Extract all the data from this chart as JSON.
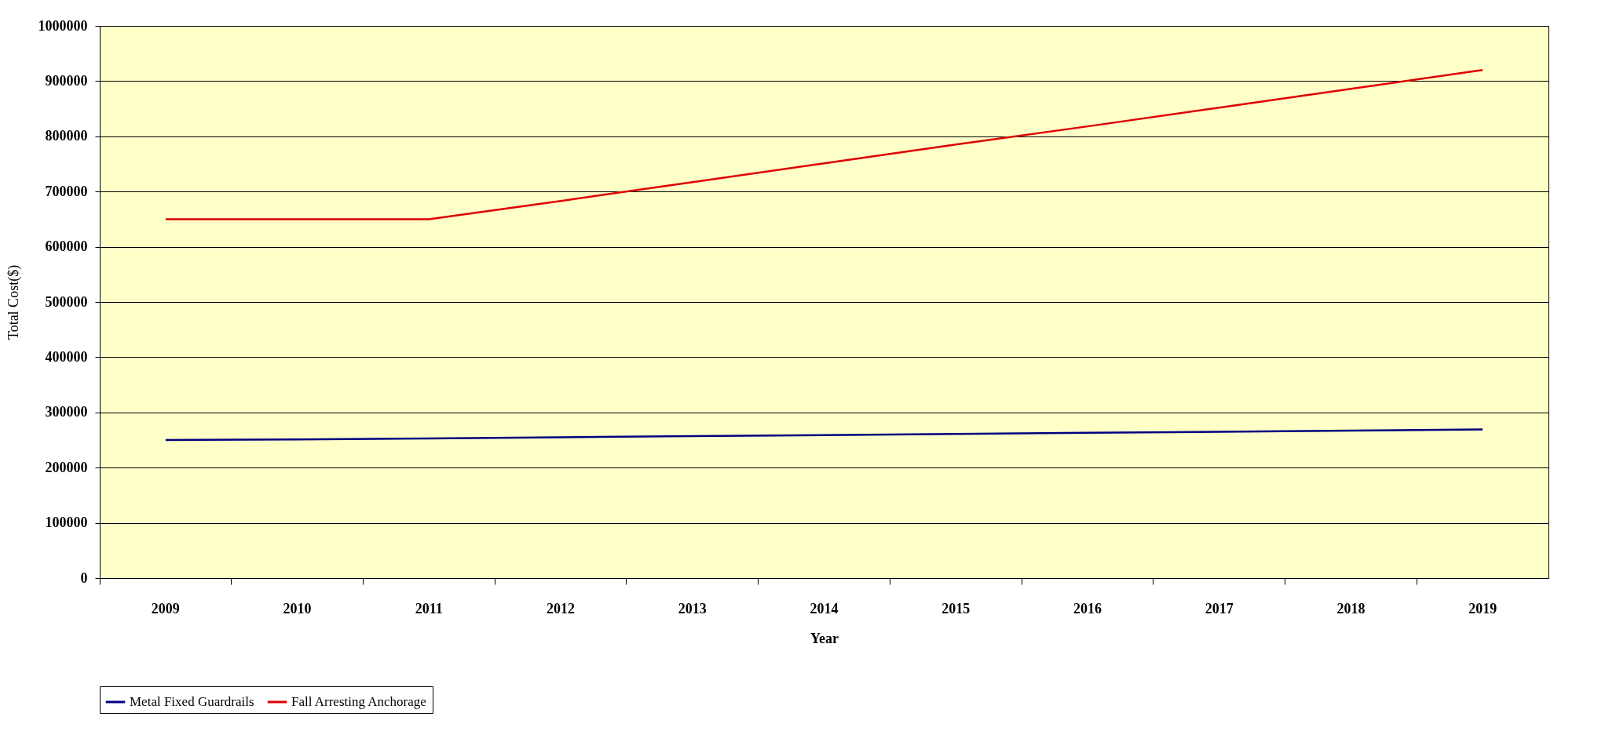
{
  "chart_data": {
    "type": "line",
    "xlabel": "Year",
    "ylabel": "Total Cost($)",
    "categories": [
      "2009",
      "2010",
      "2011",
      "2012",
      "2013",
      "2014",
      "2015",
      "2016",
      "2017",
      "2018",
      "2019"
    ],
    "series": [
      {
        "name": "Metal Fixed Guardrails",
        "color": "#000080",
        "values": [
          250000,
          251000,
          253000,
          255000,
          257000,
          259000,
          261000,
          263000,
          265000,
          267000,
          269000
        ]
      },
      {
        "name": "Fall Arresting Anchorage",
        "color": "#e00000",
        "values": [
          650000,
          650000,
          650000,
          683000,
          717000,
          751000,
          785000,
          818000,
          852000,
          886000,
          920000
        ]
      }
    ],
    "ylim": [
      0,
      1000000
    ],
    "yticks": [
      0,
      100000,
      200000,
      300000,
      400000,
      500000,
      600000,
      700000,
      800000,
      900000,
      1000000
    ],
    "grid": "y",
    "legend": "bottom",
    "marker": "none",
    "line_style": "solid"
  }
}
